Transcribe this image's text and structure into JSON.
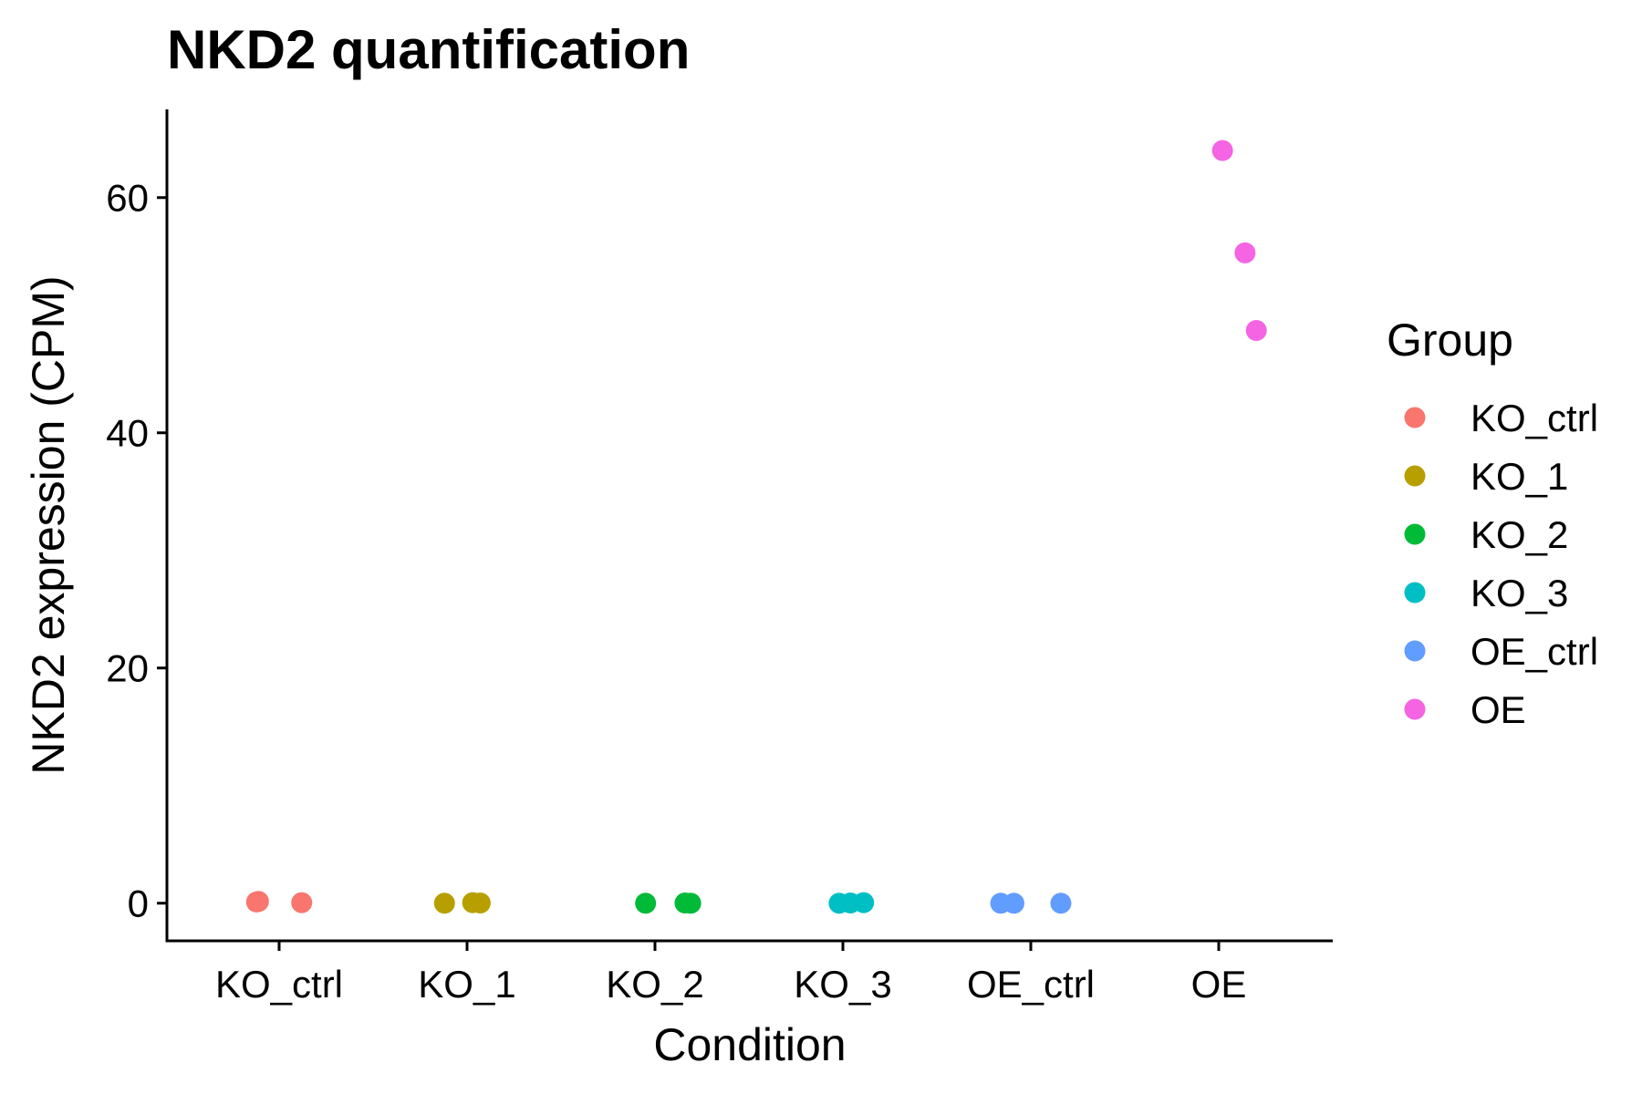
{
  "chart_data": {
    "type": "scatter",
    "title": "NKD2 quantification",
    "xlabel": "Condition",
    "ylabel": "NKD2 expression (CPM)",
    "categories": [
      "KO_ctrl",
      "KO_1",
      "KO_2",
      "KO_3",
      "OE_ctrl",
      "OE"
    ],
    "yticks": [
      0,
      20,
      40,
      60
    ],
    "ylim": [
      -3.2,
      67.5
    ],
    "grid": false,
    "legend": {
      "title": "Group",
      "position": "right",
      "entries": [
        "KO_ctrl",
        "KO_1",
        "KO_2",
        "KO_3",
        "OE_ctrl",
        "OE"
      ]
    },
    "colors": {
      "KO_ctrl": "#F8766D",
      "KO_1": "#B79F00",
      "KO_2": "#00BA38",
      "KO_3": "#00BFC4",
      "OE_ctrl": "#619CFF",
      "OE": "#F564E3"
    },
    "series": [
      {
        "name": "KO_ctrl",
        "category": "KO_ctrl",
        "values": [
          0.1,
          0.15,
          0.05
        ]
      },
      {
        "name": "KO_1",
        "category": "KO_1",
        "values": [
          0.0,
          0.05,
          0.02
        ]
      },
      {
        "name": "KO_2",
        "category": "KO_2",
        "values": [
          0.0,
          0.02,
          0.0
        ]
      },
      {
        "name": "KO_3",
        "category": "KO_3",
        "values": [
          0.0,
          0.02,
          0.05
        ]
      },
      {
        "name": "OE_ctrl",
        "category": "OE_ctrl",
        "values": [
          0.0,
          0.0,
          0.0
        ]
      },
      {
        "name": "OE",
        "category": "OE",
        "values": [
          64.0,
          55.3,
          48.7
        ]
      }
    ],
    "jitter": [
      [
        -0.12,
        -0.11,
        0.12
      ],
      [
        -0.12,
        0.03,
        0.07
      ],
      [
        -0.05,
        0.16,
        0.19
      ],
      [
        -0.02,
        0.04,
        0.11
      ],
      [
        -0.16,
        -0.09,
        0.16
      ],
      [
        0.02,
        0.14,
        0.2
      ]
    ]
  }
}
